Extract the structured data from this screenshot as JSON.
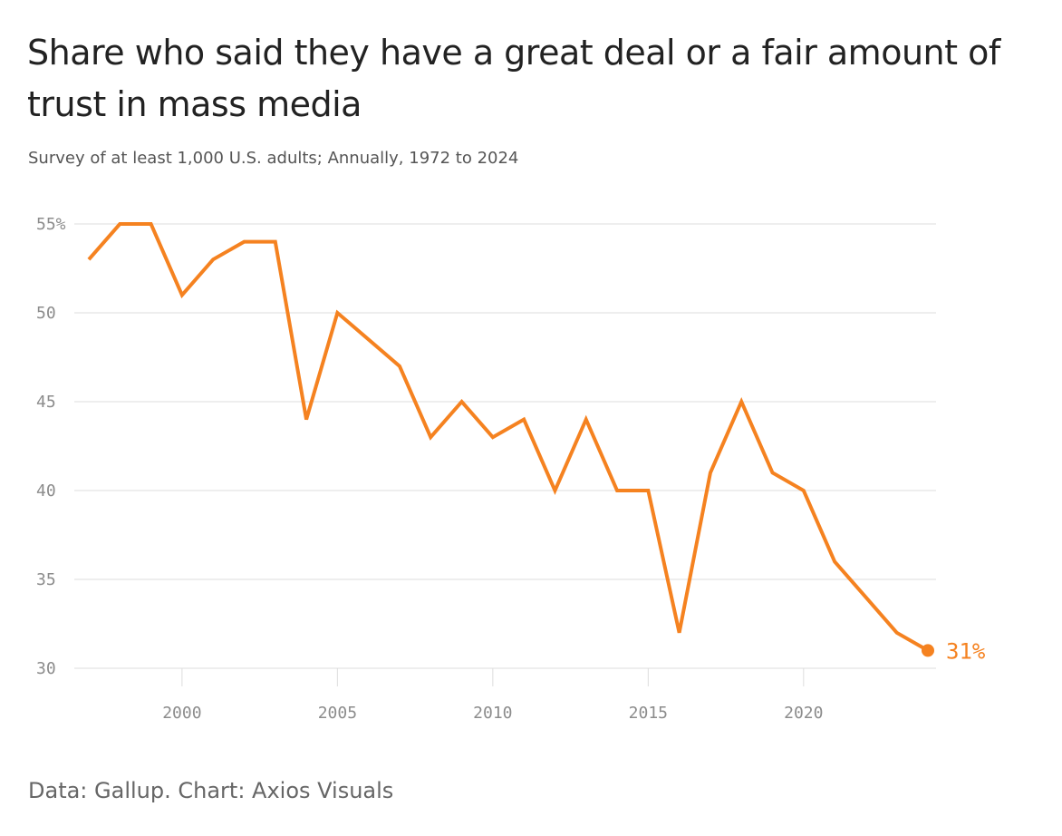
{
  "header": {
    "title": "Share who said they have a great deal or a fair amount of trust in mass media",
    "subtitle": "Survey of at least 1,000 U.S. adults; Annually, 1972 to 2024"
  },
  "footer": {
    "source": "Data: Gallup. Chart: Axios Visuals"
  },
  "colors": {
    "line": "#f58220",
    "grid": "#dddddd",
    "tick_text": "#8c8c8c"
  },
  "chart_data": {
    "type": "line",
    "title": "Share who said they have a great deal or a fair amount of trust in mass media",
    "subtitle": "Survey of at least 1,000 U.S. adults; Annually, 1972 to 2024",
    "xlabel": "",
    "ylabel": "",
    "x": [
      1997,
      1998,
      1999,
      2000,
      2001,
      2002,
      2003,
      2004,
      2005,
      2007,
      2008,
      2009,
      2010,
      2011,
      2012,
      2013,
      2014,
      2015,
      2016,
      2017,
      2018,
      2019,
      2020,
      2021,
      2022,
      2023,
      2024
    ],
    "series": [
      {
        "values": [
          53,
          55,
          55,
          51,
          53,
          54,
          54,
          44,
          50,
          47,
          43,
          45,
          43,
          44,
          40,
          44,
          40,
          40,
          32,
          41,
          45,
          41,
          40,
          36,
          34,
          32,
          31
        ]
      }
    ],
    "xlim": [
      1997,
      2024
    ],
    "ylim": [
      30,
      55
    ],
    "y_ticks": [
      30,
      35,
      40,
      45,
      50,
      55
    ],
    "y_tick_labels": [
      "30",
      "35",
      "40",
      "45",
      "50",
      "55%"
    ],
    "x_ticks": [
      2000,
      2005,
      2010,
      2015,
      2020
    ],
    "x_tick_labels": [
      "2000",
      "2005",
      "2010",
      "2015",
      "2020"
    ],
    "end_label": "31%",
    "grid": "horizontal",
    "legend": "none"
  }
}
